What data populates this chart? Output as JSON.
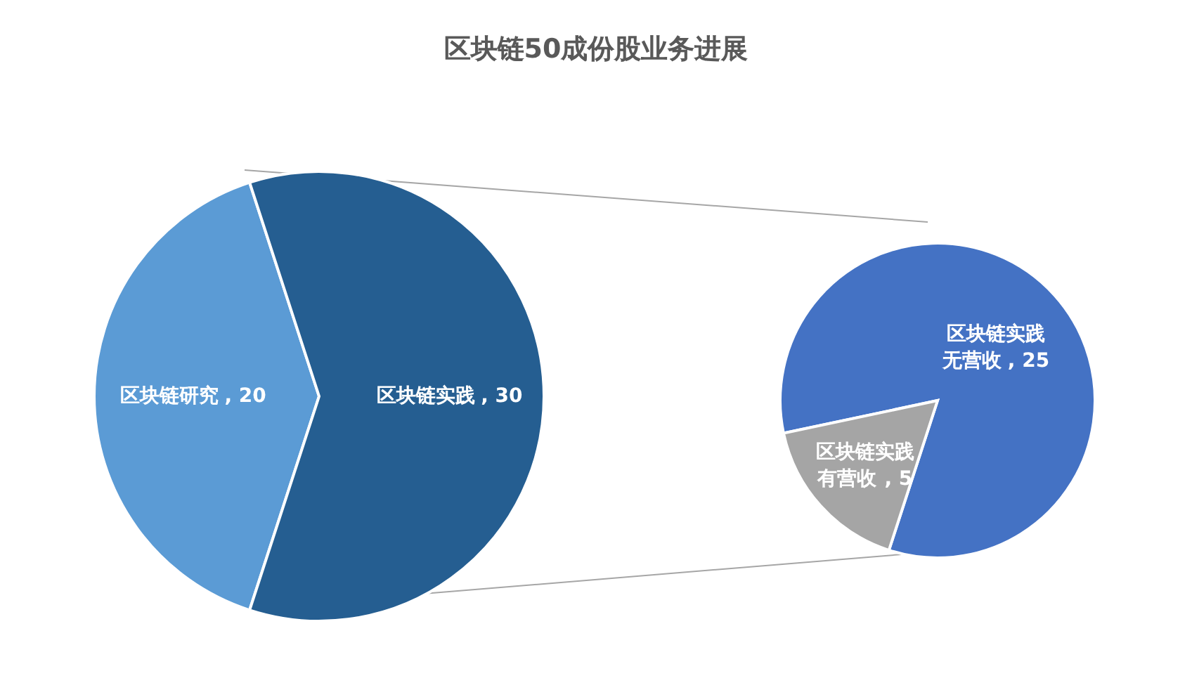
{
  "chart_data": [
    {
      "type": "pie",
      "title": "区块链50成份股业务进展",
      "categories": [
        "区块链研究",
        "区块链实践"
      ],
      "values": [
        20,
        30
      ],
      "value_labels": [
        ", 20",
        ", 30"
      ],
      "colors": [
        "#5b9bd5",
        "#255e91"
      ]
    },
    {
      "type": "pie",
      "categories": [
        "区块链实践无营收",
        "区块链实践有营收"
      ],
      "values": [
        25,
        5
      ],
      "value_labels": [
        ", 25",
        ", 5"
      ],
      "colors": [
        "#4472c4",
        "#a5a5a5"
      ]
    }
  ]
}
